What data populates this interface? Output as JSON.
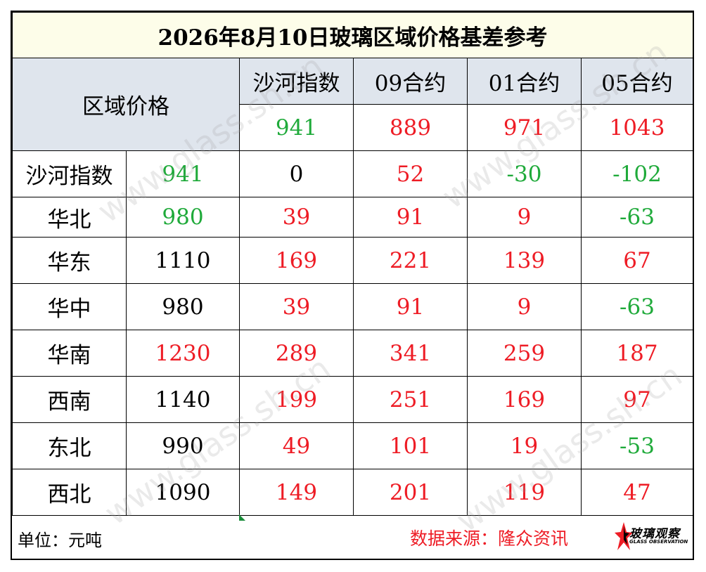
{
  "title": "2026年8月10日玻璃区域价格基差参考",
  "header": {
    "corner": "区域价格",
    "columns": [
      "沙河指数",
      "09合约",
      "01合约",
      "05合约"
    ],
    "prices": [
      {
        "value": "941",
        "color": "green"
      },
      {
        "value": "889",
        "color": "red"
      },
      {
        "value": "971",
        "color": "red"
      },
      {
        "value": "1043",
        "color": "red"
      }
    ]
  },
  "rows": [
    {
      "region": "沙河指数",
      "price": {
        "value": "941",
        "color": "green"
      },
      "cells": [
        {
          "value": "0",
          "color": "black"
        },
        {
          "value": "52",
          "color": "red"
        },
        {
          "value": "-30",
          "color": "green"
        },
        {
          "value": "-102",
          "color": "green"
        }
      ]
    },
    {
      "region": "华北",
      "price": {
        "value": "980",
        "color": "green"
      },
      "cells": [
        {
          "value": "39",
          "color": "red"
        },
        {
          "value": "91",
          "color": "red"
        },
        {
          "value": "9",
          "color": "red"
        },
        {
          "value": "-63",
          "color": "green"
        }
      ]
    },
    {
      "region": "华东",
      "price": {
        "value": "1110",
        "color": "black"
      },
      "cells": [
        {
          "value": "169",
          "color": "red"
        },
        {
          "value": "221",
          "color": "red"
        },
        {
          "value": "139",
          "color": "red"
        },
        {
          "value": "67",
          "color": "red"
        }
      ]
    },
    {
      "region": "华中",
      "price": {
        "value": "980",
        "color": "black"
      },
      "cells": [
        {
          "value": "39",
          "color": "red"
        },
        {
          "value": "91",
          "color": "red"
        },
        {
          "value": "9",
          "color": "red"
        },
        {
          "value": "-63",
          "color": "green"
        }
      ]
    },
    {
      "region": "华南",
      "price": {
        "value": "1230",
        "color": "red"
      },
      "cells": [
        {
          "value": "289",
          "color": "red"
        },
        {
          "value": "341",
          "color": "red"
        },
        {
          "value": "259",
          "color": "red"
        },
        {
          "value": "187",
          "color": "red"
        }
      ]
    },
    {
      "region": "西南",
      "price": {
        "value": "1140",
        "color": "black"
      },
      "cells": [
        {
          "value": "199",
          "color": "red"
        },
        {
          "value": "251",
          "color": "red"
        },
        {
          "value": "169",
          "color": "red"
        },
        {
          "value": "97",
          "color": "red"
        }
      ]
    },
    {
      "region": "东北",
      "price": {
        "value": "990",
        "color": "black"
      },
      "cells": [
        {
          "value": "49",
          "color": "red"
        },
        {
          "value": "101",
          "color": "red"
        },
        {
          "value": "19",
          "color": "red"
        },
        {
          "value": "-53",
          "color": "green"
        }
      ]
    },
    {
      "region": "西北",
      "price": {
        "value": "1090",
        "color": "black"
      },
      "cells": [
        {
          "value": "149",
          "color": "red"
        },
        {
          "value": "201",
          "color": "red"
        },
        {
          "value": "119",
          "color": "red"
        },
        {
          "value": "47",
          "color": "red"
        }
      ]
    }
  ],
  "footer": {
    "unit": "单位：元吨",
    "source": "数据来源：隆众资讯",
    "logo_text": "玻璃观察",
    "logo_sub": "GLASS OBSERVATION"
  },
  "watermark": "www.glass.sh.cn",
  "colors": {
    "green": "#1faa3a",
    "red": "#ee1c25",
    "black": "#000000",
    "header_bg": "#dfe5ed",
    "title_bg": "#fdfde9"
  }
}
